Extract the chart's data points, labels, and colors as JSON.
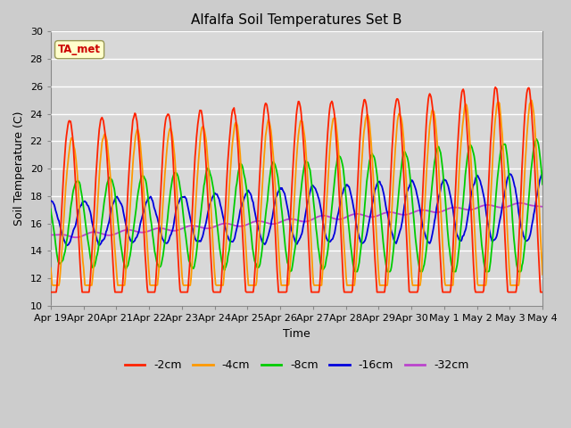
{
  "title": "Alfalfa Soil Temperatures Set B",
  "xlabel": "Time",
  "ylabel": "Soil Temperature (C)",
  "ylim": [
    10,
    30
  ],
  "background_color": "#d8d8d8",
  "plot_bg_color": "#d8d8d8",
  "series_colors": {
    "-2cm": "#ff2200",
    "-4cm": "#ff9900",
    "-8cm": "#00cc00",
    "-16cm": "#0000dd",
    "-32cm": "#bb44cc"
  },
  "x_tick_labels": [
    "Apr 19",
    "Apr 20",
    "Apr 21",
    "Apr 22",
    "Apr 23",
    "Apr 24",
    "Apr 25",
    "Apr 26",
    "Apr 27",
    "Apr 28",
    "Apr 29",
    "Apr 30",
    "May 1",
    "May 2",
    "May 3",
    "May 4"
  ],
  "legend_labels": [
    "-2cm",
    "-4cm",
    "-8cm",
    "-16cm",
    "-32cm"
  ],
  "ta_met_label": "TA_met",
  "ta_met_box_color": "#ffffcc",
  "ta_met_text_color": "#cc0000",
  "ta_met_border_color": "#999955"
}
